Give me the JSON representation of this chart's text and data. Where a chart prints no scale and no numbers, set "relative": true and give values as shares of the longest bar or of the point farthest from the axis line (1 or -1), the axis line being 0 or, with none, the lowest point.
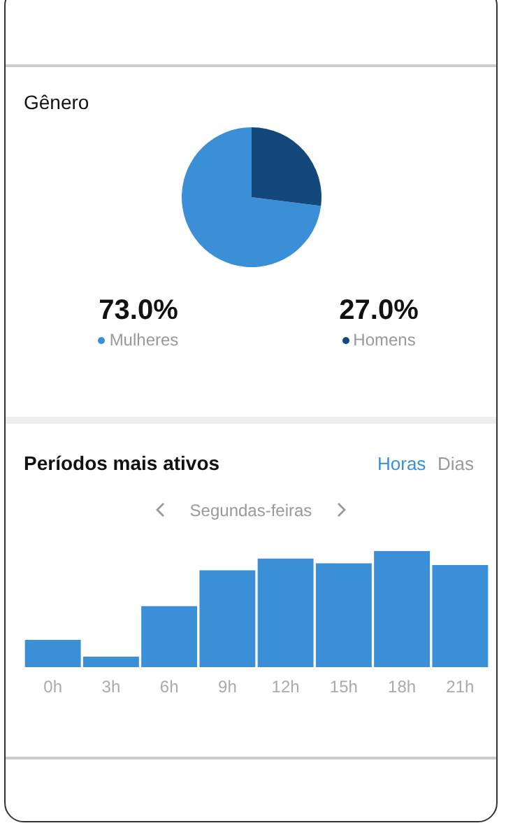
{
  "chart_data": [
    {
      "type": "pie",
      "title": "Gênero",
      "categories": [
        "Mulheres",
        "Homens"
      ],
      "values": [
        73.0,
        27.0
      ],
      "colors": [
        "#3a8fd6",
        "#14477a"
      ],
      "value_labels": [
        "73.0%",
        "27.0%"
      ],
      "legend": "bottom"
    },
    {
      "type": "bar",
      "title": "Períodos mais ativos",
      "subtitle": "Segundas-feiras",
      "annotations": [
        "Horas",
        "Dias"
      ],
      "categories": [
        "0h",
        "3h",
        "6h",
        "9h",
        "12h",
        "15h",
        "18h",
        "21h"
      ],
      "values": [
        0.235,
        0.09,
        0.525,
        0.835,
        0.935,
        0.895,
        1,
        0.88
      ],
      "color": "#3a8fd6",
      "relative": true
    }
  ]
}
